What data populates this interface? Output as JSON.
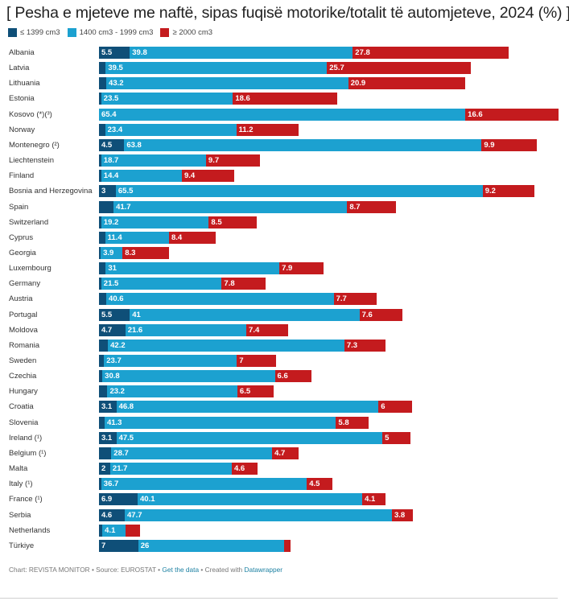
{
  "colors": {
    "small": "#0f4f78",
    "medium": "#1ca1d0",
    "large": "#c41b1e"
  },
  "footer": {
    "chart_by": "Chart: REVISTA MONITOR",
    "sep1": " • ",
    "source": "Source: EUROSTAT",
    "sep2": " • ",
    "get_data": "Get the data",
    "sep3": " • ",
    "created_with": "Created with ",
    "datawrapper": "Datawrapper"
  },
  "chart_data": {
    "type": "bar",
    "orientation": "horizontal",
    "stacked": true,
    "title": "[ Pesha e mjeteve me naftë, sipas fuqisë motorike/totalit të automjeteve, 2024 (%) ]",
    "xlabel": "",
    "ylabel": "",
    "xlim": [
      0,
      82
    ],
    "grid": false,
    "legend_position": "top-left",
    "legend": [
      "≤ 1399 cm3",
      "1400 cm3 - 1999 cm3",
      "≥ 2000 cm3"
    ],
    "categories": [
      "Albania",
      "Latvia",
      "Lithuania",
      "Estonia",
      "Kosovo (*)(³)",
      "Norway",
      "Montenegro (²)",
      "Liechtenstein",
      "Finland",
      "Bosnia and Herzegovina",
      "Spain",
      "Switzerland",
      "Cyprus",
      "Georgia",
      "Luxembourg",
      "Germany",
      "Austria",
      "Portugal",
      "Moldova",
      "Romania",
      "Sweden",
      "Czechia",
      "Hungary",
      "Croatia",
      "Slovenia",
      "Ireland (¹)",
      "Belgium (¹)",
      "Malta",
      "Italy (¹)",
      "France (¹)",
      "Serbia",
      "Netherlands",
      "Türkiye"
    ],
    "series": [
      {
        "name": "≤ 1399 cm3",
        "values": [
          5.5,
          1.2,
          1.3,
          0.4,
          0,
          1.1,
          4.5,
          0.4,
          0.4,
          3,
          2.6,
          0.4,
          1.1,
          0.3,
          1.2,
          0.4,
          1.3,
          5.5,
          4.7,
          1.6,
          0.9,
          0.6,
          1.5,
          3.1,
          1.0,
          3.1,
          2.2,
          2,
          0.4,
          6.9,
          4.6,
          0.6,
          7
        ],
        "labels": [
          "5.5",
          "",
          "",
          "",
          "",
          "",
          "4.5",
          "",
          "",
          "3",
          "",
          "",
          "",
          "",
          "",
          "",
          "",
          "5.5",
          "4.7",
          "",
          "",
          "",
          "",
          "3.1",
          "",
          "3.1",
          "",
          "2",
          "",
          "6.9",
          "4.6",
          "",
          "7"
        ]
      },
      {
        "name": "1400 cm3 - 1999 cm3",
        "values": [
          39.8,
          39.5,
          43.2,
          23.5,
          65.4,
          23.4,
          63.8,
          18.7,
          14.4,
          65.5,
          41.7,
          19.2,
          11.4,
          3.9,
          31,
          21.5,
          40.6,
          41,
          21.6,
          42.2,
          23.7,
          30.8,
          23.2,
          46.8,
          41.3,
          47.5,
          28.7,
          21.7,
          36.7,
          40.1,
          47.7,
          4.1,
          26
        ],
        "labels": [
          "39.8",
          "39.5",
          "43.2",
          "23.5",
          "65.4",
          "23.4",
          "63.8",
          "18.7",
          "14.4",
          "65.5",
          "41.7",
          "19.2",
          "11.4",
          "3.9",
          "31",
          "21.5",
          "40.6",
          "41",
          "21.6",
          "42.2",
          "23.7",
          "30.8",
          "23.2",
          "46.8",
          "41.3",
          "47.5",
          "28.7",
          "21.7",
          "36.7",
          "40.1",
          "47.7",
          "4.1",
          "26"
        ]
      },
      {
        "name": "≥ 2000 cm3",
        "values": [
          27.8,
          25.7,
          20.9,
          18.6,
          16.6,
          11.2,
          9.9,
          9.7,
          9.4,
          9.2,
          8.7,
          8.5,
          8.4,
          8.3,
          7.9,
          7.8,
          7.7,
          7.6,
          7.4,
          7.3,
          7,
          6.6,
          6.5,
          6,
          5.8,
          5,
          4.7,
          4.6,
          4.5,
          4.1,
          3.8,
          2.6,
          1.2
        ],
        "labels": [
          "27.8",
          "25.7",
          "20.9",
          "18.6",
          "16.6",
          "11.2",
          "9.9",
          "9.7",
          "9.4",
          "9.2",
          "8.7",
          "8.5",
          "8.4",
          "8.3",
          "7.9",
          "7.8",
          "7.7",
          "7.6",
          "7.4",
          "7.3",
          "7",
          "6.6",
          "6.5",
          "6",
          "5.8",
          "5",
          "4.7",
          "4.6",
          "4.5",
          "4.1",
          "3.8",
          "",
          ""
        ]
      }
    ]
  }
}
